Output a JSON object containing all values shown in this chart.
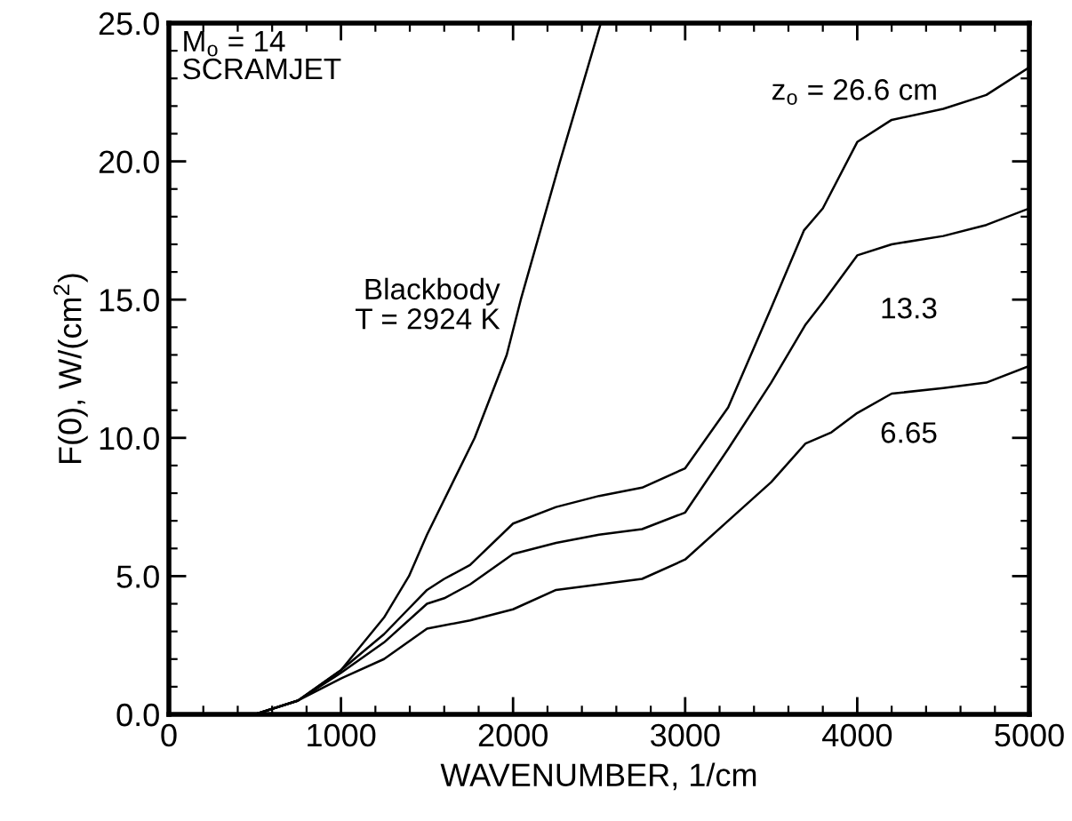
{
  "chart_data": {
    "type": "line",
    "xlabel": "WAVENUMBER, 1/cm",
    "ylabel": "F(0), W/(cm$^{2}$)",
    "xlim": [
      0,
      5000
    ],
    "ylim": [
      0,
      25
    ],
    "xticks": [
      0,
      1000,
      2000,
      3000,
      4000,
      5000
    ],
    "yticks": [
      {
        "value": 0,
        "label": "0.0"
      },
      {
        "value": 5,
        "label": "5.0"
      },
      {
        "value": 10,
        "label": "10.0"
      },
      {
        "value": 15,
        "label": "15.0"
      },
      {
        "value": 20,
        "label": "20.0"
      },
      {
        "value": 25,
        "label": "25.0"
      }
    ],
    "grid": false,
    "legend": false,
    "marker": "none",
    "line_style": "solid",
    "series": [
      {
        "name": "Blackbody\nT = 2924 K",
        "color": "#000000",
        "x": [
          500,
          750,
          1000,
          1250,
          1395,
          1500,
          1777,
          1963,
          2045,
          2273,
          2510
        ],
        "values": [
          0,
          0.5,
          1.6,
          3.5,
          5.0,
          6.5,
          10.0,
          13.0,
          15.0,
          20.0,
          25.0
        ]
      },
      {
        "name": "z$_{o}$ = 26.6 cm",
        "color": "#000000",
        "x": [
          500,
          750,
          1000,
          1250,
          1500,
          1600,
          1750,
          2000,
          2250,
          2500,
          2750,
          3000,
          3250,
          3500,
          3690,
          3800,
          4000,
          4200,
          4500,
          4750,
          5000
        ],
        "values": [
          0,
          0.5,
          1.6,
          2.9,
          4.5,
          4.9,
          5.4,
          6.9,
          7.5,
          7.9,
          8.2,
          8.9,
          11.1,
          14.7,
          17.5,
          18.3,
          20.7,
          21.5,
          21.9,
          22.4,
          23.4
        ]
      },
      {
        "name": "13.3",
        "color": "#000000",
        "x": [
          500,
          750,
          1000,
          1250,
          1500,
          1600,
          1750,
          2000,
          2250,
          2500,
          2750,
          3000,
          3250,
          3500,
          3700,
          3800,
          4000,
          4200,
          4500,
          4750,
          5000
        ],
        "values": [
          0,
          0.5,
          1.5,
          2.6,
          4.0,
          4.2,
          4.7,
          5.8,
          6.2,
          6.5,
          6.7,
          7.3,
          9.6,
          12.0,
          14.1,
          14.9,
          16.6,
          17.0,
          17.3,
          17.7,
          18.3
        ]
      },
      {
        "name": "6.65",
        "color": "#000000",
        "x": [
          500,
          750,
          1000,
          1250,
          1500,
          1750,
          2000,
          2250,
          2500,
          2750,
          3000,
          3250,
          3500,
          3700,
          3850,
          4000,
          4200,
          4500,
          4750,
          5000
        ],
        "values": [
          0,
          0.5,
          1.3,
          2.0,
          3.1,
          3.4,
          3.8,
          4.5,
          4.7,
          4.9,
          5.6,
          7.0,
          8.4,
          9.8,
          10.2,
          10.9,
          11.6,
          11.8,
          12.0,
          12.6
        ]
      }
    ],
    "annotations": [
      "M$_{o}$ = 14\nSCRAMJET"
    ]
  }
}
